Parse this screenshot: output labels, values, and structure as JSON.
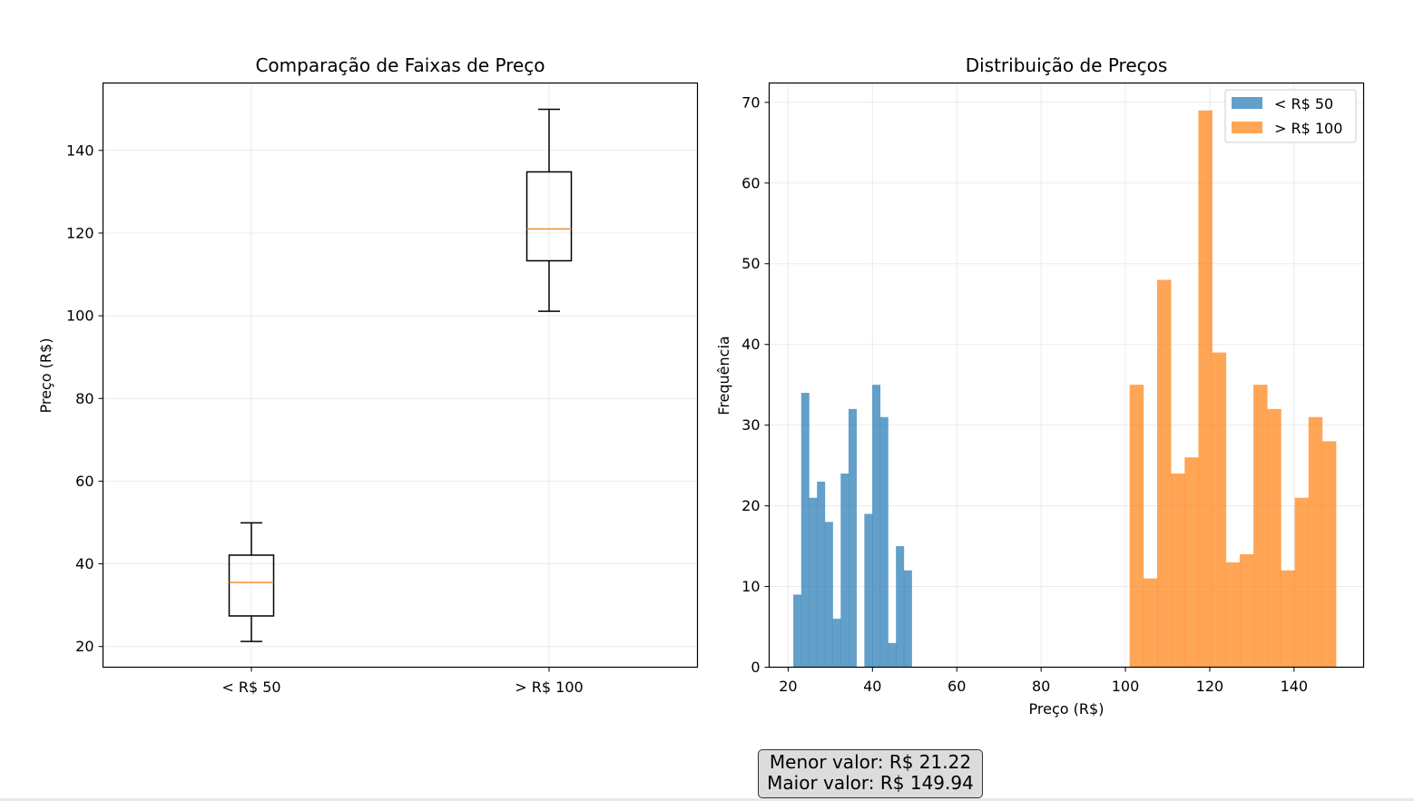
{
  "colors": {
    "series_low": "#1f77b4",
    "series_high": "#ff7f0e",
    "median": "#e8913a",
    "grid": "#ebebeb"
  },
  "chart_data": [
    {
      "type": "box",
      "title": "Comparação de Faixas de Preço",
      "xlabel": "",
      "ylabel": "Preço (R$)",
      "categories": [
        "< R$ 50",
        "> R$ 100"
      ],
      "boxes": [
        {
          "whisker_low": 21.22,
          "q1": 27.4,
          "median": 35.5,
          "q3": 42.1,
          "whisker_high": 49.9
        },
        {
          "whisker_low": 101.1,
          "q1": 113.3,
          "median": 121.0,
          "q3": 134.8,
          "whisker_high": 149.94
        }
      ],
      "ylim": [
        15,
        156.3
      ],
      "yticks": [
        20,
        40,
        60,
        80,
        100,
        120,
        140
      ],
      "grid": true
    },
    {
      "type": "histogram",
      "title": "Distribuição de Preços",
      "xlabel": "Preço (R$)",
      "ylabel": "Frequência",
      "xlim": [
        15.5,
        156.5
      ],
      "ylim": [
        0,
        72.4
      ],
      "xticks": [
        20,
        40,
        60,
        80,
        100,
        120,
        140
      ],
      "yticks": [
        0,
        10,
        20,
        30,
        40,
        50,
        60,
        70
      ],
      "legend_position": "top-right",
      "grid": true,
      "series": [
        {
          "name": "< R$ 50",
          "color": "#1f77b4",
          "alpha": 0.7,
          "bin_start": 21.22,
          "bin_width": 1.873,
          "values": [
            9,
            34,
            21,
            23,
            18,
            6,
            24,
            32,
            0,
            19,
            35,
            31,
            3,
            15,
            12
          ]
        },
        {
          "name": "> R$ 100",
          "color": "#ff7f0e",
          "alpha": 0.7,
          "bin_start": 101.0,
          "bin_width": 3.263,
          "values": [
            35,
            11,
            48,
            24,
            26,
            69,
            39,
            13,
            14,
            35,
            32,
            12,
            21,
            31,
            28
          ]
        }
      ]
    }
  ],
  "stats": {
    "min_line": "Menor valor: R$ 21.22",
    "max_line": "Maior valor: R$ 149.94"
  }
}
